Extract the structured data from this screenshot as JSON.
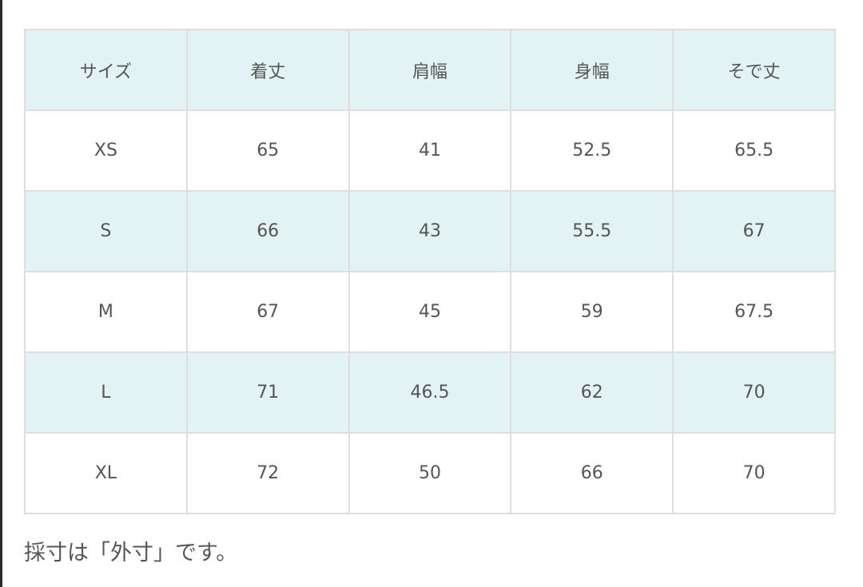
{
  "table": {
    "headers": [
      "サイズ",
      "着丈",
      "肩幅",
      "身幅",
      "そで丈"
    ],
    "rows": [
      [
        "XS",
        "65",
        "41",
        "52.5",
        "65.5"
      ],
      [
        "S",
        "66",
        "43",
        "55.5",
        "67"
      ],
      [
        "M",
        "67",
        "45",
        "59",
        "67.5"
      ],
      [
        "L",
        "71",
        "46.5",
        "62",
        "70"
      ],
      [
        "XL",
        "72",
        "50",
        "66",
        "70"
      ]
    ]
  },
  "note": "採寸は「外寸」です。",
  "colors": {
    "header_bg": "#e3f2f2",
    "border": "#dedede",
    "text": "#555555"
  }
}
